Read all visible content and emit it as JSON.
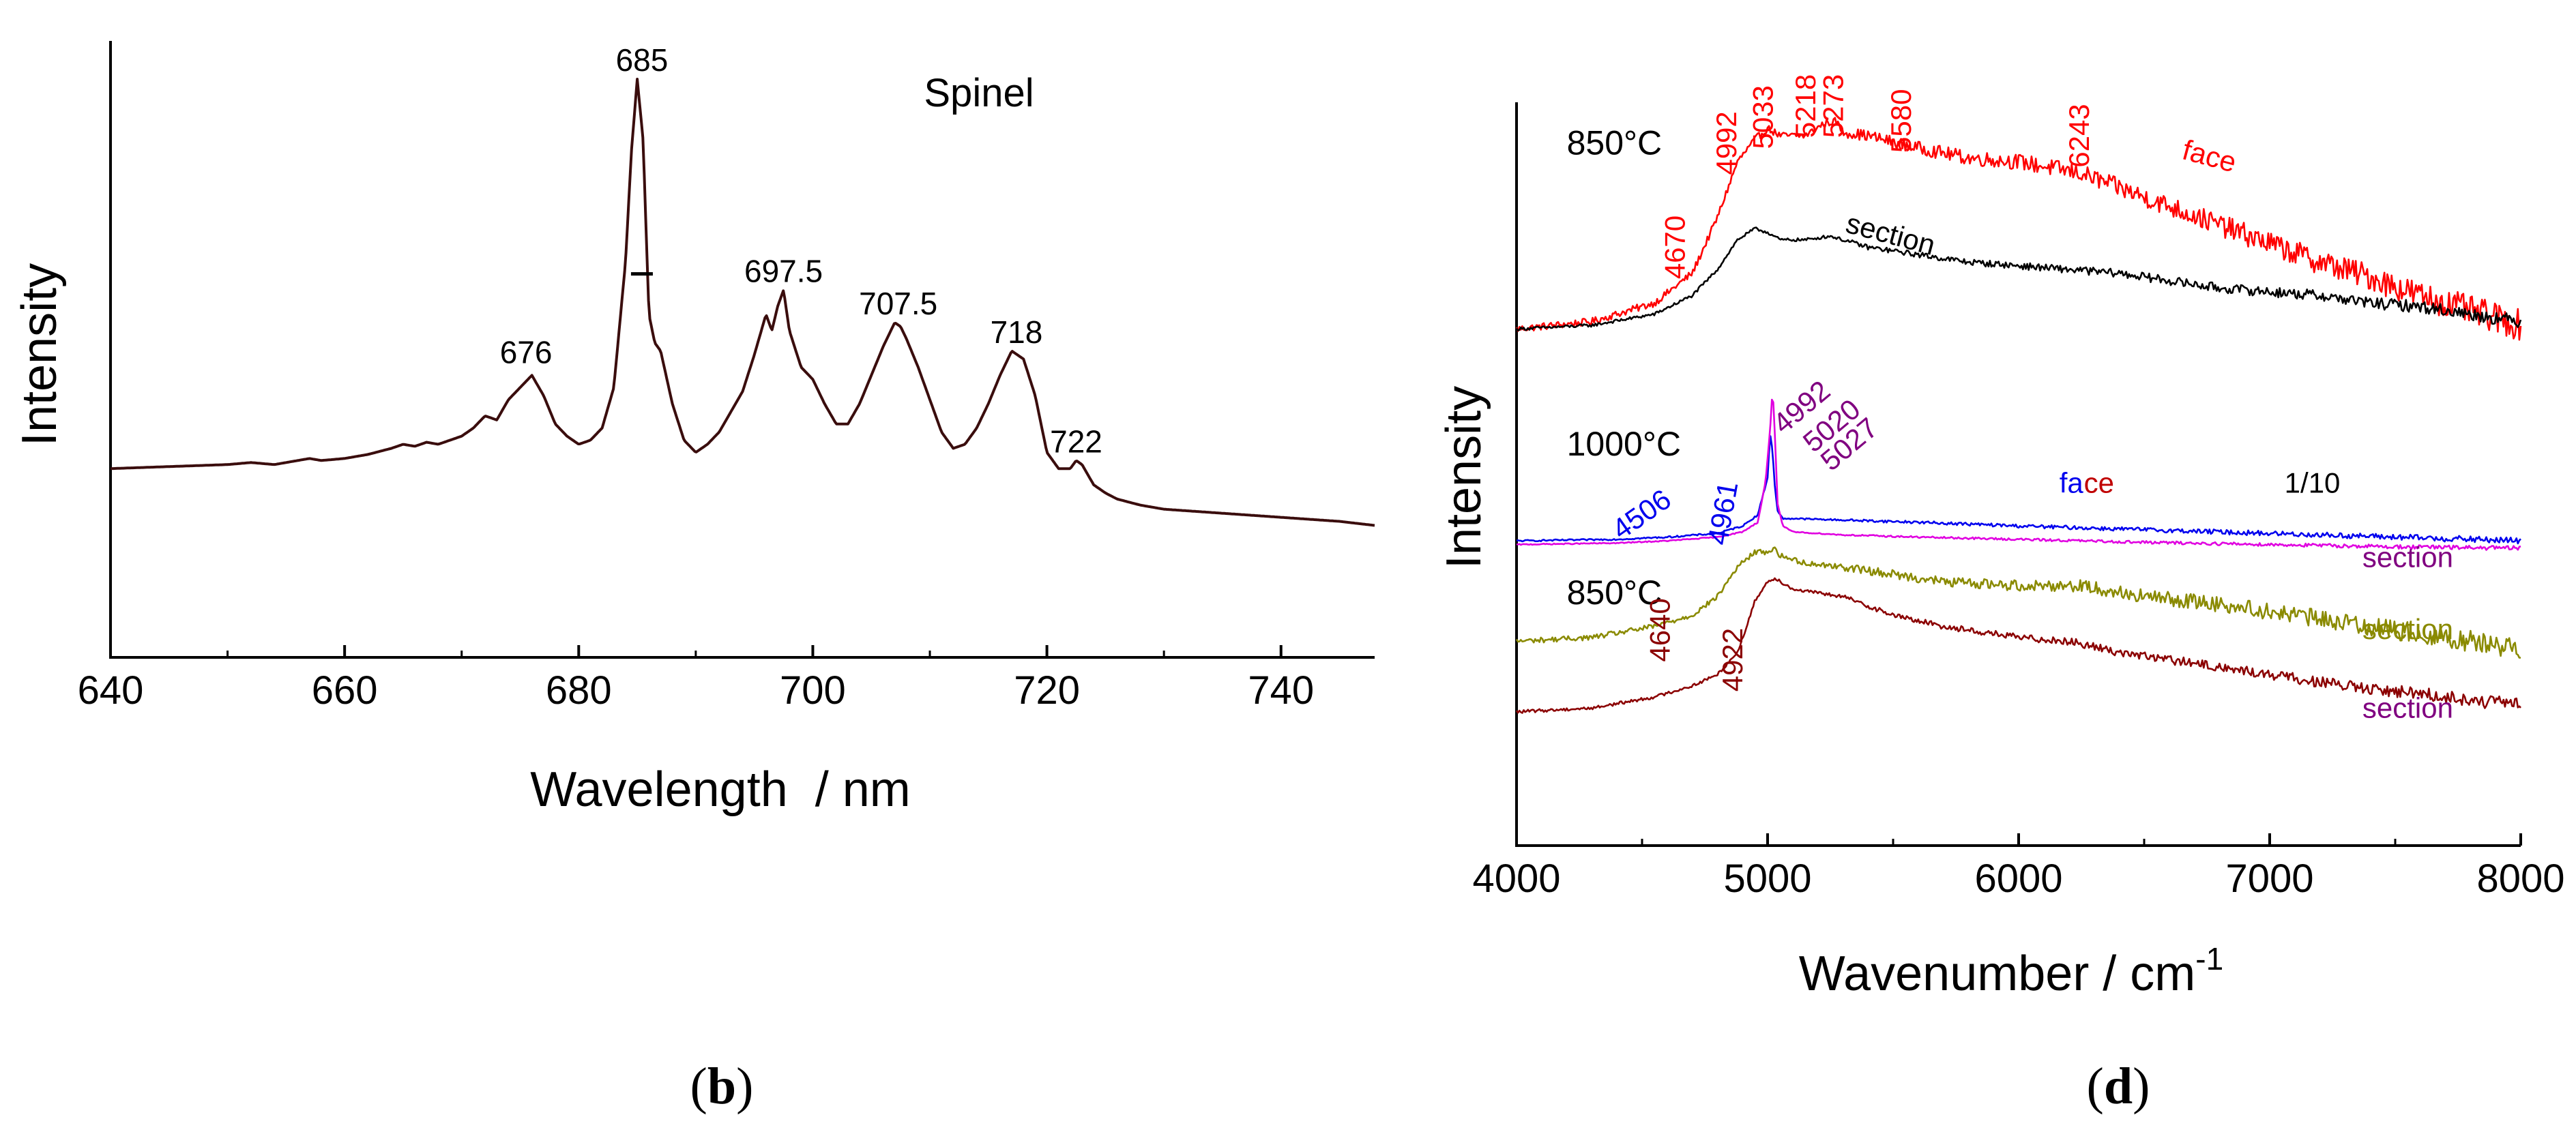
{
  "chart_data": [
    {
      "type": "line",
      "panel_label": "(b)",
      "panel_letter": "b",
      "title": "Spinel",
      "xlabel": "Wavelength  / nm",
      "ylabel": "Intensity",
      "xlim": [
        640,
        748
      ],
      "ylim": [
        0,
        1.2
      ],
      "xticks": [
        640,
        660,
        680,
        700,
        720,
        740
      ],
      "yticks": [],
      "grid": false,
      "series": [
        {
          "name": "Spinel spectrum",
          "color": "#3a0d0d",
          "x": [
            640,
            645,
            650,
            652,
            654,
            656,
            657,
            658,
            660,
            662,
            664,
            665,
            666,
            667,
            668,
            670,
            671,
            672,
            673,
            674,
            675,
            676,
            677,
            678,
            679,
            680,
            681,
            682,
            683,
            684,
            684.5,
            685,
            685.5,
            686,
            686.5,
            687,
            688,
            689,
            690,
            691,
            692,
            693,
            694,
            695,
            696,
            696.5,
            697,
            697.5,
            698,
            699,
            700,
            701,
            702,
            703,
            704,
            705,
            706,
            707,
            707.5,
            708,
            709,
            710,
            711,
            712,
            713,
            714,
            715,
            716,
            717,
            718,
            719,
            720,
            721,
            722,
            722.5,
            723,
            724,
            725,
            726,
            728,
            730,
            735,
            740,
            745,
            748
          ],
          "y": [
            0.24,
            0.245,
            0.25,
            0.255,
            0.25,
            0.26,
            0.265,
            0.26,
            0.265,
            0.275,
            0.29,
            0.3,
            0.295,
            0.305,
            0.3,
            0.32,
            0.34,
            0.37,
            0.36,
            0.41,
            0.44,
            0.47,
            0.42,
            0.35,
            0.32,
            0.3,
            0.31,
            0.34,
            0.44,
            0.75,
            1.02,
            1.2,
            1.05,
            0.62,
            0.55,
            0.53,
            0.4,
            0.31,
            0.28,
            0.3,
            0.33,
            0.38,
            0.43,
            0.52,
            0.62,
            0.58,
            0.64,
            0.68,
            0.58,
            0.49,
            0.46,
            0.4,
            0.35,
            0.35,
            0.4,
            0.47,
            0.54,
            0.6,
            0.59,
            0.56,
            0.49,
            0.41,
            0.33,
            0.29,
            0.3,
            0.34,
            0.4,
            0.47,
            0.53,
            0.51,
            0.42,
            0.28,
            0.24,
            0.24,
            0.26,
            0.25,
            0.2,
            0.18,
            0.165,
            0.15,
            0.14,
            0.13,
            0.12,
            0.11,
            0.1
          ]
        }
      ],
      "annotations": [
        {
          "text": "685",
          "x": 685.4,
          "y": 1.22
        },
        {
          "text": "676",
          "x": 675.5,
          "y": 0.5
        },
        {
          "text": "697.5",
          "x": 697.5,
          "y": 0.7
        },
        {
          "text": "707.5",
          "x": 707.3,
          "y": 0.62
        },
        {
          "text": "718",
          "x": 717.4,
          "y": 0.55
        },
        {
          "text": "722",
          "x": 722.5,
          "y": 0.28
        }
      ],
      "marker": {
        "x": 685.4,
        "y": 0.72
      }
    },
    {
      "type": "line",
      "panel_label": "(d)",
      "panel_letter": "d",
      "title": "",
      "xlabel": "Wavenumber / cm",
      "xlabel_superscript": "-1",
      "ylabel": "Intensity",
      "xlim": [
        4000,
        8000
      ],
      "ylim": [
        0,
        10
      ],
      "xticks": [
        4000,
        5000,
        6000,
        7000,
        8000
      ],
      "yticks": [],
      "grid": false,
      "group_labels": [
        {
          "text": "850°C",
          "x": 4200,
          "y": 9.3
        },
        {
          "text": "1000°C",
          "x": 4200,
          "y": 5.25
        },
        {
          "text": "850°C",
          "x": 4200,
          "y": 3.25
        }
      ],
      "series": [
        {
          "name": "850°C face",
          "color": "#ff0000",
          "x": [
            4000,
            4300,
            4550,
            4700,
            4800,
            4880,
            4950,
            5000,
            5050,
            5100,
            5150,
            5218,
            5273,
            5300,
            5400,
            5580,
            5800,
            6000,
            6243,
            6400,
            6600,
            6800,
            7000,
            7200,
            7400,
            7600,
            7800,
            8000
          ],
          "y": [
            6.95,
            7.05,
            7.3,
            7.7,
            8.45,
            9.2,
            9.5,
            9.65,
            9.55,
            9.55,
            9.55,
            9.7,
            9.75,
            9.6,
            9.55,
            9.4,
            9.25,
            9.2,
            9.05,
            8.85,
            8.6,
            8.35,
            8.1,
            7.85,
            7.65,
            7.4,
            7.2,
            7.0
          ],
          "noise": 0.14
        },
        {
          "name": "850°C section",
          "color": "#000000",
          "x": [
            4000,
            4300,
            4550,
            4700,
            4800,
            4880,
            4950,
            5000,
            5050,
            5150,
            5250,
            5400,
            5600,
            5800,
            6000,
            6200,
            6400,
            6600,
            6800,
            7000,
            7200,
            7400,
            7600,
            7800,
            8000
          ],
          "y": [
            6.95,
            7.0,
            7.15,
            7.4,
            7.75,
            8.15,
            8.3,
            8.25,
            8.15,
            8.15,
            8.2,
            8.05,
            7.95,
            7.85,
            7.8,
            7.75,
            7.7,
            7.6,
            7.5,
            7.45,
            7.4,
            7.3,
            7.25,
            7.15,
            7.05
          ],
          "noise": 0.06
        },
        {
          "name": "1000°C face",
          "color": "#0000ee",
          "x": [
            4000,
            4400,
            4600,
            4800,
            4900,
            4961,
            5000,
            5010,
            5020,
            5027,
            5040,
            5060,
            5100,
            5300,
            5600,
            6000,
            6500,
            7000,
            7500,
            8000
          ],
          "y": [
            4.1,
            4.12,
            4.15,
            4.2,
            4.3,
            4.45,
            4.95,
            5.55,
            5.3,
            4.9,
            4.5,
            4.4,
            4.4,
            4.38,
            4.35,
            4.3,
            4.25,
            4.2,
            4.15,
            4.1
          ],
          "noise": 0.03
        },
        {
          "name": "1000°C section",
          "color": "#e000e0",
          "x": [
            4000,
            4400,
            4600,
            4800,
            4900,
            4961,
            4992,
            5010,
            5020,
            5027,
            5040,
            5060,
            5100,
            5300,
            5600,
            6000,
            6500,
            7000,
            7500,
            8000
          ],
          "y": [
            4.05,
            4.07,
            4.1,
            4.15,
            4.22,
            4.35,
            4.9,
            5.6,
            6.15,
            5.7,
            4.6,
            4.3,
            4.22,
            4.18,
            4.15,
            4.12,
            4.08,
            4.05,
            4.02,
            4.0
          ],
          "noise": 0.02
        },
        {
          "name": "850°C section",
          "color": "#8a8a00",
          "x": [
            4000,
            4300,
            4550,
            4700,
            4800,
            4880,
            4950,
            5000,
            5027,
            5050,
            5150,
            5300,
            5500,
            5700,
            6000,
            6243,
            6500,
            6800,
            7000,
            7200,
            7400,
            7600,
            7800,
            8000
          ],
          "y": [
            2.75,
            2.8,
            2.95,
            3.1,
            3.35,
            3.75,
            3.95,
            3.95,
            4.0,
            3.9,
            3.8,
            3.75,
            3.65,
            3.55,
            3.5,
            3.5,
            3.35,
            3.25,
            3.15,
            3.05,
            2.95,
            2.85,
            2.75,
            2.65
          ],
          "noise": 0.1
        },
        {
          "name": "850°C section",
          "color": "#8b0000",
          "x": [
            4000,
            4300,
            4550,
            4700,
            4800,
            4880,
            4922,
            4950,
            5000,
            5030,
            5100,
            5300,
            5500,
            5700,
            6000,
            6200,
            6400,
            6600,
            6800,
            7000,
            7200,
            7400,
            7600,
            7800,
            8000
          ],
          "y": [
            1.8,
            1.85,
            2.0,
            2.15,
            2.3,
            2.6,
            3.0,
            3.3,
            3.55,
            3.6,
            3.45,
            3.35,
            3.1,
            2.95,
            2.8,
            2.75,
            2.6,
            2.5,
            2.4,
            2.3,
            2.2,
            2.1,
            2.05,
            1.95,
            1.9
          ],
          "noise": 0.06
        }
      ],
      "annotations": [
        {
          "text": "4670",
          "x": 4670,
          "y": 8.05,
          "rotate": -90,
          "color": "#ff0000"
        },
        {
          "text": "4992",
          "x": 4875,
          "y": 9.45,
          "rotate": -90,
          "color": "#ff0000"
        },
        {
          "text": "5033",
          "x": 5020,
          "y": 9.8,
          "rotate": -90,
          "color": "#ff0000"
        },
        {
          "text": "5218",
          "x": 5190,
          "y": 9.95,
          "rotate": -90,
          "color": "#ff0000"
        },
        {
          "text": "5273",
          "x": 5300,
          "y": 9.95,
          "rotate": -90,
          "color": "#ff0000"
        },
        {
          "text": "5580",
          "x": 5570,
          "y": 9.75,
          "rotate": -90,
          "color": "#ff0000"
        },
        {
          "text": "6243",
          "x": 6280,
          "y": 9.55,
          "rotate": -90,
          "color": "#ff0000"
        },
        {
          "text": "face",
          "x": 6750,
          "y": 9.15,
          "rotate": 15,
          "color": "#ff0000"
        },
        {
          "text": "section",
          "x": 5480,
          "y": 8.1,
          "rotate": 15,
          "color": "#000000"
        },
        {
          "text": "4506",
          "x": 4520,
          "y": 4.35,
          "rotate": -35,
          "color": "#0000ee"
        },
        {
          "text": "4961",
          "x": 4860,
          "y": 4.45,
          "rotate": -80,
          "color": "#0000ee"
        },
        {
          "text": "4992",
          "x": 5160,
          "y": 5.8,
          "rotate": -40,
          "color": "#800080"
        },
        {
          "text": "5020",
          "x": 5280,
          "y": 5.55,
          "rotate": -40,
          "color": "#800080"
        },
        {
          "text": "5027",
          "x": 5350,
          "y": 5.3,
          "rotate": -40,
          "color": "#800080"
        },
        {
          "text": "fa",
          "x": 6210,
          "y": 4.75,
          "color": "#0000ee"
        },
        {
          "text": "ce",
          "x": 6320,
          "y": 4.75,
          "color": "#c00000"
        },
        {
          "text": "1/10",
          "x": 7170,
          "y": 4.75,
          "color": "#000000"
        },
        {
          "text": "section",
          "x": 7550,
          "y": 3.75,
          "color": "#800080"
        },
        {
          "text": "section",
          "x": 7550,
          "y": 2.78,
          "color": "#8a8a00"
        },
        {
          "text": "section",
          "x": 7550,
          "y": 1.72,
          "color": "#800080"
        },
        {
          "text": "4640",
          "x": 4610,
          "y": 2.9,
          "rotate": -90,
          "color": "#8b0000"
        },
        {
          "text": "4922",
          "x": 4900,
          "y": 2.5,
          "rotate": -90,
          "color": "#8b0000"
        }
      ]
    }
  ]
}
